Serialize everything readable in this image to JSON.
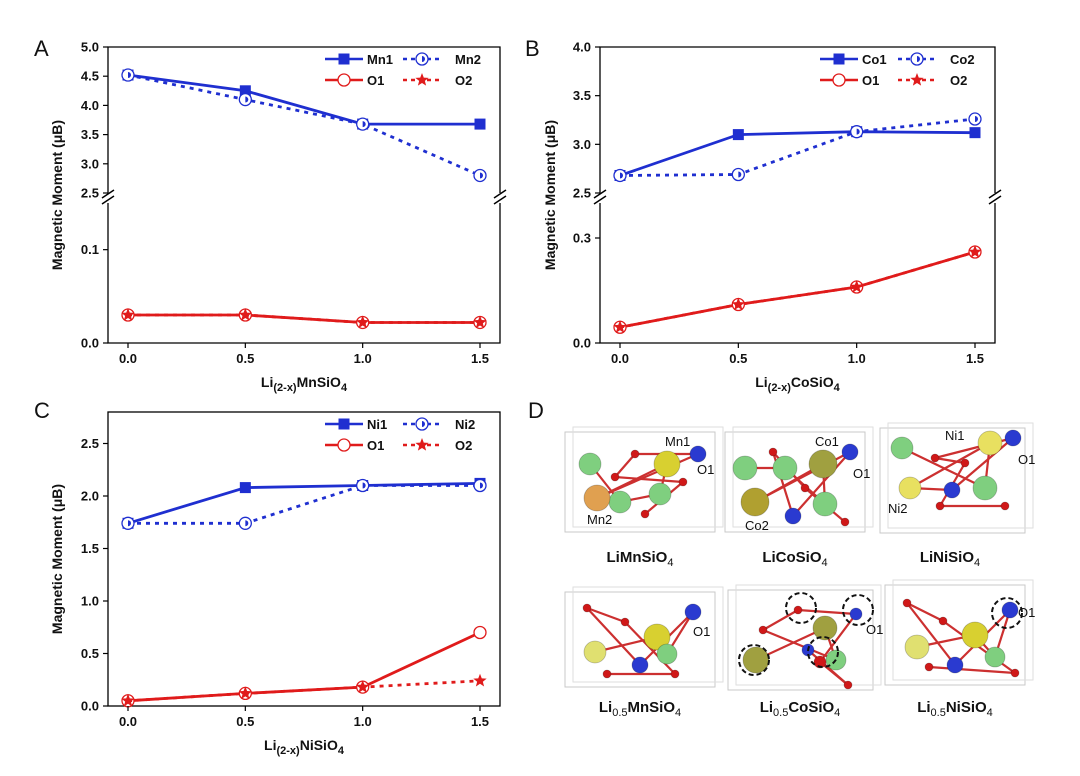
{
  "panels": [
    {
      "letter": "A",
      "type": "line",
      "xlabel": "Li(2-x)MnSiO4",
      "xlabel_main": "Li",
      "xlabel_sub": "(2-x)",
      "xlabel_rest": "MnSiO",
      "xlabel_tail": "4",
      "ylabel": "Magnetic Moment (μB)",
      "x": [
        0.0,
        0.5,
        1.0,
        1.5
      ],
      "x_ticks": [
        "0.0",
        "0.5",
        "1.0",
        "1.5"
      ],
      "broken_axis": true,
      "upper_range": [
        2.5,
        5.0
      ],
      "upper_ticks": [
        "2.5",
        "3.0",
        "3.5",
        "4.0",
        "4.5",
        "5.0"
      ],
      "lower_range": [
        0.0,
        0.15
      ],
      "lower_ticks": [
        "0.0",
        "0.1"
      ],
      "series": [
        {
          "name": "Mn1",
          "color": "#1f2fd0",
          "marker": "square",
          "dash": false,
          "segment": "upper",
          "values": [
            4.52,
            4.25,
            3.68,
            3.68
          ]
        },
        {
          "name": "Mn2",
          "color": "#1f2fd0",
          "marker": "circle-half",
          "dash": true,
          "segment": "upper",
          "values": [
            4.52,
            4.1,
            3.68,
            2.8
          ]
        },
        {
          "name": "O1",
          "color": "#e01b1b",
          "marker": "circle-open",
          "dash": false,
          "segment": "lower",
          "values": [
            0.03,
            0.03,
            0.022,
            0.022
          ]
        },
        {
          "name": "O2",
          "color": "#e01b1b",
          "marker": "star",
          "dash": true,
          "segment": "lower",
          "values": [
            0.03,
            0.03,
            0.022,
            0.022
          ]
        }
      ]
    },
    {
      "letter": "B",
      "type": "line",
      "xlabel": "Li(2-x)CoSiO4",
      "xlabel_main": "Li",
      "xlabel_sub": "(2-x)",
      "xlabel_rest": "CoSiO",
      "xlabel_tail": "4",
      "ylabel": "Magnetic Moment (μB)",
      "x": [
        0.0,
        0.5,
        1.0,
        1.5
      ],
      "x_ticks": [
        "0.0",
        "0.5",
        "1.0",
        "1.5"
      ],
      "broken_axis": true,
      "upper_range": [
        2.5,
        4.0
      ],
      "upper_ticks": [
        "2.5",
        "3.0",
        "3.5",
        "4.0"
      ],
      "lower_range": [
        0.0,
        0.4
      ],
      "lower_ticks": [
        "0.0",
        "0.3"
      ],
      "series": [
        {
          "name": "Co1",
          "color": "#1f2fd0",
          "marker": "square",
          "dash": false,
          "segment": "upper",
          "values": [
            2.68,
            3.1,
            3.13,
            3.12
          ]
        },
        {
          "name": "Co2",
          "color": "#1f2fd0",
          "marker": "circle-half",
          "dash": true,
          "segment": "upper",
          "values": [
            2.68,
            2.69,
            3.13,
            3.26
          ]
        },
        {
          "name": "O1",
          "color": "#e01b1b",
          "marker": "circle-open",
          "dash": false,
          "segment": "lower",
          "values": [
            0.045,
            0.11,
            0.16,
            0.26
          ]
        },
        {
          "name": "O2",
          "color": "#e01b1b",
          "marker": "star",
          "dash": true,
          "segment": "lower",
          "values": [
            0.045,
            0.11,
            0.16,
            0.26
          ]
        }
      ]
    },
    {
      "letter": "C",
      "type": "line",
      "xlabel": "Li(2-x)NiSiO4",
      "xlabel_main": "Li",
      "xlabel_sub": "(2-x)",
      "xlabel_rest": "NiSiO",
      "xlabel_tail": "4",
      "ylabel": "Magnetic Moment (μB)",
      "x": [
        0.0,
        0.5,
        1.0,
        1.5
      ],
      "x_ticks": [
        "0.0",
        "0.5",
        "1.0",
        "1.5"
      ],
      "broken_axis": false,
      "y_range": [
        0.0,
        2.8
      ],
      "y_ticks": [
        "0.0",
        "0.5",
        "1.0",
        "1.5",
        "2.0",
        "2.5"
      ],
      "series": [
        {
          "name": "Ni1",
          "color": "#1f2fd0",
          "marker": "square",
          "dash": false,
          "values": [
            1.74,
            2.08,
            2.1,
            2.12
          ]
        },
        {
          "name": "Ni2",
          "color": "#1f2fd0",
          "marker": "circle-half",
          "dash": true,
          "values": [
            1.74,
            1.74,
            2.1,
            2.1
          ]
        },
        {
          "name": "O1",
          "color": "#e01b1b",
          "marker": "circle-open",
          "dash": false,
          "values": [
            0.05,
            0.12,
            0.18,
            0.7
          ]
        },
        {
          "name": "O2",
          "color": "#e01b1b",
          "marker": "star",
          "dash": true,
          "values": [
            0.05,
            0.12,
            0.18,
            0.24
          ]
        }
      ]
    }
  ],
  "panel_d": {
    "letter": "D",
    "structures": [
      {
        "caption_main": "LiMnSiO",
        "caption_sub": "4",
        "labels": [
          "Mn1",
          "O1",
          "Mn2"
        ]
      },
      {
        "caption_main": "LiCoSiO",
        "caption_sub": "4",
        "labels": [
          "Co1",
          "O1",
          "Co2"
        ]
      },
      {
        "caption_main": "LiNiSiO",
        "caption_sub": "4",
        "labels": [
          "Ni1",
          "O1",
          "Ni2"
        ]
      },
      {
        "caption_pre": "Li",
        "caption_frac": "0.5",
        "caption_main": "MnSiO",
        "caption_sub": "4",
        "labels": [
          "O1"
        ]
      },
      {
        "caption_pre": "Li",
        "caption_frac": "0.5",
        "caption_main": "CoSiO",
        "caption_sub": "4",
        "labels": [
          "O1"
        ]
      },
      {
        "caption_pre": "Li",
        "caption_frac": "0.5",
        "caption_main": "NiSiO",
        "caption_sub": "4",
        "labels": [
          "O1"
        ]
      }
    ]
  }
}
